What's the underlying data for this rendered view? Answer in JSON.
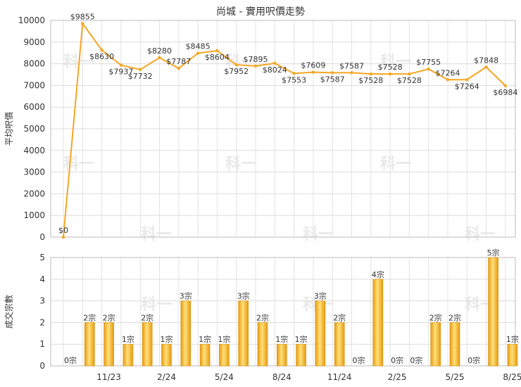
{
  "title": "尚城 - 實用呎價走勢",
  "chart_data": [
    {
      "type": "line",
      "ylabel": "平均呎價",
      "ylim": [
        0,
        10000
      ],
      "yticks": [
        0,
        1000,
        2000,
        3000,
        4000,
        5000,
        6000,
        7000,
        8000,
        9000,
        10000
      ],
      "grid": true,
      "color": "#F5A623",
      "values": [
        0,
        9855,
        8630,
        7937,
        7732,
        8280,
        7787,
        8485,
        8604,
        7952,
        7895,
        8024,
        7553,
        7609,
        7587,
        7587,
        7528,
        7528,
        7528,
        7755,
        7264,
        7264,
        7848,
        6984
      ],
      "labels": [
        "$0",
        "$9855",
        "$8630",
        "$7937",
        "$7732",
        "$8280",
        "$7787",
        "$8485",
        "$8604",
        "$7952",
        "$7895",
        "$8024",
        "$7553",
        "$7609",
        "$7587",
        "$7587",
        "$7528",
        "$7528",
        "$7528",
        "$7755",
        "$7264",
        "$7264",
        "$7848",
        "$6984"
      ],
      "label_above": [
        true,
        true,
        false,
        false,
        false,
        true,
        true,
        true,
        false,
        false,
        true,
        false,
        false,
        true,
        false,
        true,
        false,
        true,
        false,
        true,
        true,
        false,
        true,
        false
      ]
    },
    {
      "type": "bar",
      "ylabel": "成交宗數",
      "ylim": [
        0,
        5
      ],
      "yticks": [
        0,
        1,
        2,
        3,
        4,
        5
      ],
      "grid": true,
      "color": "#F0AE1A",
      "values": [
        0,
        2,
        2,
        1,
        2,
        1,
        3,
        1,
        1,
        3,
        2,
        1,
        1,
        3,
        2,
        0,
        4,
        0,
        0,
        2,
        2,
        0,
        5,
        1
      ],
      "labels": [
        "0宗",
        "2宗",
        "2宗",
        "1宗",
        "2宗",
        "1宗",
        "3宗",
        "1宗",
        "1宗",
        "3宗",
        "2宗",
        "1宗",
        "1宗",
        "3宗",
        "2宗",
        "0宗",
        "4宗",
        "0宗",
        "0宗",
        "2宗",
        "2宗",
        "0宗",
        "5宗",
        "1宗"
      ]
    }
  ],
  "x_tick_labels": [
    {
      "index": 2,
      "label": "11/23"
    },
    {
      "index": 5,
      "label": "2/24"
    },
    {
      "index": 8,
      "label": "5/24"
    },
    {
      "index": 11,
      "label": "8/24"
    },
    {
      "index": 14,
      "label": "11/24"
    },
    {
      "index": 17,
      "label": "2/25"
    },
    {
      "index": 20,
      "label": "5/25"
    },
    {
      "index": 23,
      "label": "8/25"
    }
  ],
  "watermark": "科一"
}
